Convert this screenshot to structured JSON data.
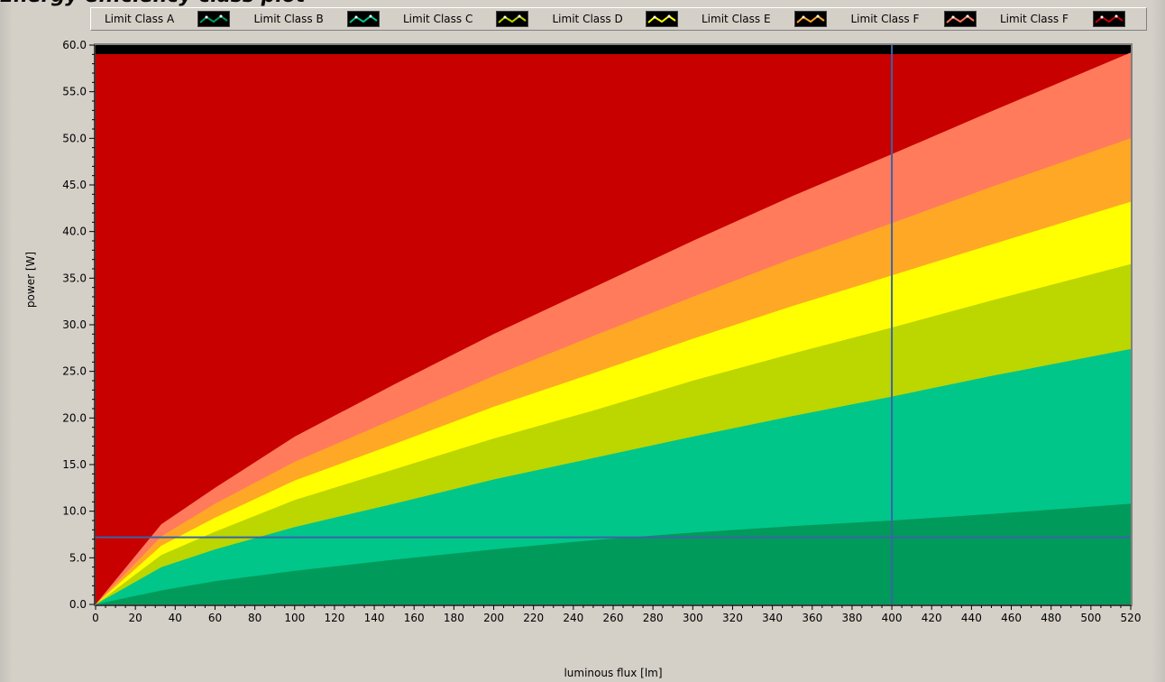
{
  "window": {
    "title": "Energy efficiency class plot"
  },
  "legend": [
    {
      "label": "Limit Class A",
      "swatch_color": "#009a5a"
    },
    {
      "label": "Limit Class B",
      "swatch_color": "#00c68a"
    },
    {
      "label": "Limit Class C",
      "swatch_color": "#bcd600"
    },
    {
      "label": "Limit Class D",
      "swatch_color": "#ffff00"
    },
    {
      "label": "Limit Class E",
      "swatch_color": "#ffa826"
    },
    {
      "label": "Limit Class F",
      "swatch_color": "#ff7b5c"
    },
    {
      "label": "Limit Class F",
      "swatch_color": "#c80000"
    }
  ],
  "colors": {
    "plot_background": "#c80000",
    "plot_top_band": "#000000",
    "cursor_line": "#3a63a8",
    "class_A": "#009a5a",
    "class_B": "#00c68a",
    "class_C": "#bcd600",
    "class_D": "#ffff00",
    "class_E": "#ffa826",
    "class_F": "#ff7b5c",
    "class_G": "#c80000"
  },
  "cursor": {
    "x": 400,
    "y": 7.2
  },
  "chart_data": {
    "type": "area",
    "xlabel": "luminous flux [lm]",
    "ylabel": "power [W]",
    "xlim": [
      0,
      520
    ],
    "ylim": [
      0,
      60
    ],
    "x_ticks": [
      "0",
      "20",
      "40",
      "60",
      "80",
      "100",
      "120",
      "140",
      "160",
      "180",
      "200",
      "220",
      "240",
      "260",
      "280",
      "300",
      "320",
      "340",
      "360",
      "380",
      "400",
      "420",
      "440",
      "460",
      "480",
      "500",
      "520"
    ],
    "y_ticks": [
      "0.0",
      "5.0",
      "10.0",
      "15.0",
      "20.0",
      "25.0",
      "30.0",
      "35.0",
      "40.0",
      "45.0",
      "50.0",
      "55.0",
      "60.0"
    ],
    "grid": false,
    "x": [
      0,
      33,
      60,
      100,
      150,
      200,
      250,
      300,
      350,
      400,
      450,
      520
    ],
    "series": [
      {
        "name": "Limit Class A",
        "values": [
          0,
          1.5,
          2.5,
          3.6,
          4.8,
          5.9,
          6.9,
          7.7,
          8.4,
          9.0,
          9.7,
          10.8
        ]
      },
      {
        "name": "Limit Class B",
        "values": [
          0,
          4.0,
          5.9,
          8.3,
          10.8,
          13.4,
          15.7,
          18.0,
          20.2,
          22.3,
          24.5,
          27.4
        ]
      },
      {
        "name": "Limit Class C",
        "values": [
          0,
          5.3,
          7.8,
          11.2,
          14.5,
          17.8,
          20.8,
          24.0,
          26.9,
          29.7,
          32.6,
          36.5
        ]
      },
      {
        "name": "Limit Class D",
        "values": [
          0,
          6.3,
          9.3,
          13.3,
          17.2,
          21.2,
          24.8,
          28.5,
          32.0,
          35.3,
          38.6,
          43.2
        ]
      },
      {
        "name": "Limit Class E",
        "values": [
          0,
          7.3,
          10.8,
          15.3,
          19.9,
          24.5,
          28.8,
          33.0,
          37.1,
          40.9,
          44.8,
          50.0
        ]
      },
      {
        "name": "Limit Class F",
        "values": [
          0,
          8.6,
          12.5,
          18.0,
          23.6,
          29.0,
          34.0,
          39.0,
          43.8,
          48.3,
          52.9,
          59.2
        ]
      }
    ]
  }
}
